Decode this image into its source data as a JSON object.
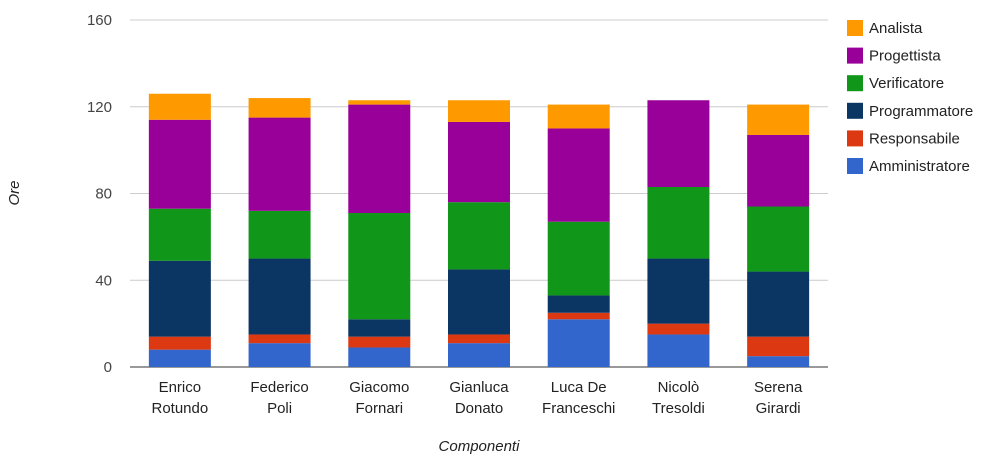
{
  "chart_data": {
    "type": "bar",
    "stacked": true,
    "categories": [
      [
        "Enrico",
        "Rotundo"
      ],
      [
        "Federico",
        "Poli"
      ],
      [
        "Giacomo",
        "Fornari"
      ],
      [
        "Gianluca",
        "Donato"
      ],
      [
        "Luca De",
        "Franceschi"
      ],
      [
        "Nicolò",
        "Tresoldi"
      ],
      [
        "Serena",
        "Girardi"
      ]
    ],
    "series": [
      {
        "name": "Amministratore",
        "color": "#3366cc",
        "values": [
          8,
          11,
          9,
          11,
          22,
          15,
          5
        ]
      },
      {
        "name": "Responsabile",
        "color": "#dc3912",
        "values": [
          6,
          4,
          5,
          4,
          3,
          5,
          9
        ]
      },
      {
        "name": "Programmatore",
        "color": "#0b3563",
        "values": [
          35,
          35,
          8,
          30,
          8,
          30,
          30
        ]
      },
      {
        "name": "Verificatore",
        "color": "#109618",
        "values": [
          24,
          22,
          49,
          31,
          34,
          33,
          30
        ]
      },
      {
        "name": "Progettista",
        "color": "#990099",
        "values": [
          41,
          43,
          50,
          37,
          43,
          40,
          33
        ]
      },
      {
        "name": "Analista",
        "color": "#ff9900",
        "values": [
          12,
          9,
          2,
          10,
          11,
          0,
          14
        ]
      }
    ],
    "legend_order": [
      "Analista",
      "Progettista",
      "Verificatore",
      "Programmatore",
      "Responsabile",
      "Amministratore"
    ],
    "xlabel": "Componenti",
    "ylabel": "Ore",
    "ylim": [
      0,
      160
    ],
    "yticks": [
      0,
      40,
      80,
      120,
      160
    ],
    "grid": true,
    "legend_position": "right"
  }
}
